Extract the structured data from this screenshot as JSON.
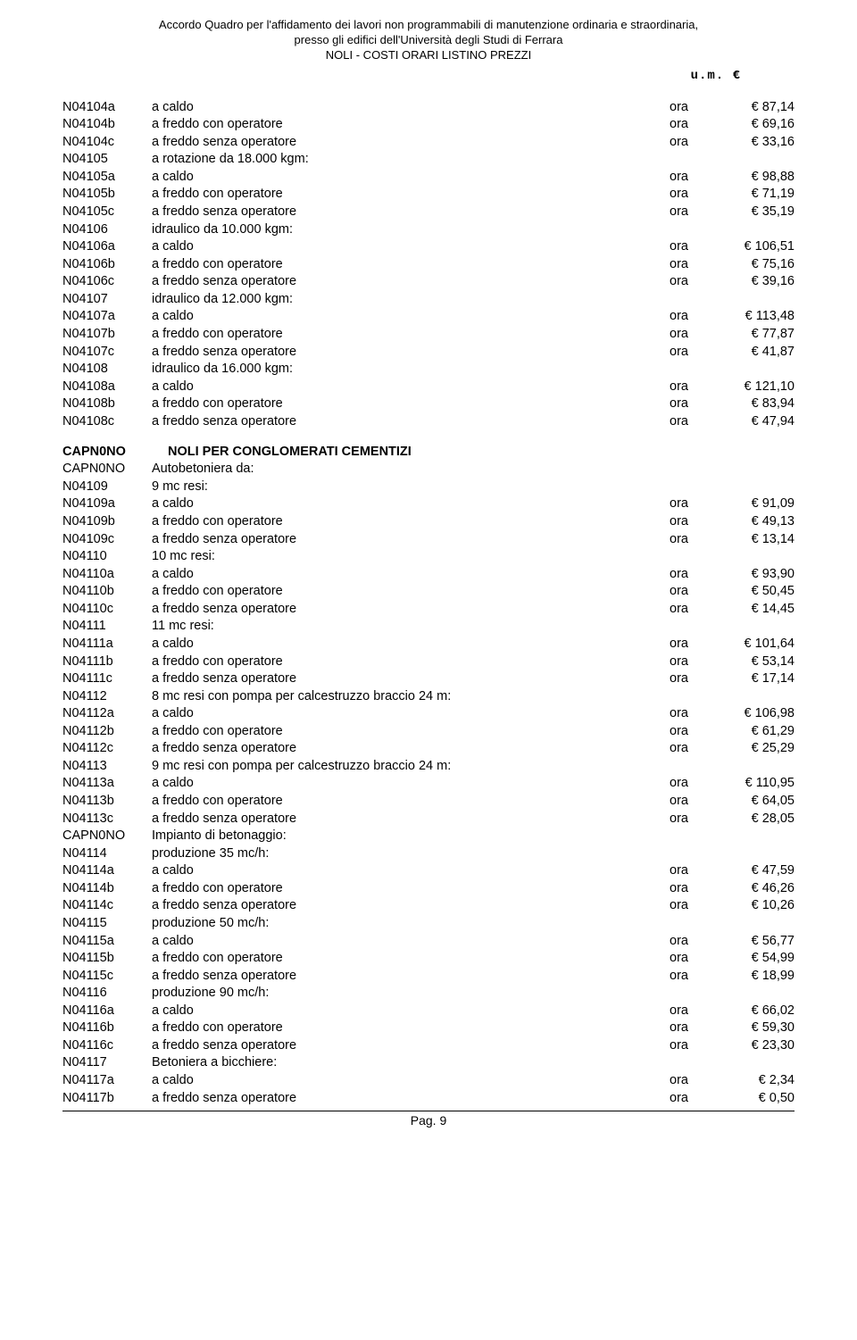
{
  "header": {
    "line1": "Accordo Quadro per l'affidamento dei lavori non programmabili di manutenzione ordinaria e straordinaria,",
    "line2": "presso gli edifici dell'Università degli Studi di Ferrara",
    "line3": "NOLI - COSTI ORARI LISTINO PREZZI"
  },
  "um_label": "u.m.   €",
  "section": {
    "code": "CAPN0NO",
    "title": "NOLI PER CONGLOMERATI CEMENTIZI"
  },
  "rows": [
    {
      "code": "N04104a",
      "desc": "a caldo",
      "unit": "ora",
      "price": "€ 87,14"
    },
    {
      "code": "N04104b",
      "desc": "a freddo con operatore",
      "unit": "ora",
      "price": "€ 69,16"
    },
    {
      "code": "N04104c",
      "desc": "a freddo senza operatore",
      "unit": "ora",
      "price": "€ 33,16"
    },
    {
      "code": "N04105",
      "desc": "a rotazione da 18.000 kgm:",
      "unit": "",
      "price": ""
    },
    {
      "code": "N04105a",
      "desc": "a caldo",
      "unit": "ora",
      "price": "€ 98,88"
    },
    {
      "code": "N04105b",
      "desc": "a freddo con operatore",
      "unit": "ora",
      "price": "€ 71,19"
    },
    {
      "code": "N04105c",
      "desc": "a freddo senza operatore",
      "unit": "ora",
      "price": "€ 35,19"
    },
    {
      "code": "N04106",
      "desc": "idraulico da 10.000 kgm:",
      "unit": "",
      "price": ""
    },
    {
      "code": "N04106a",
      "desc": "a caldo",
      "unit": "ora",
      "price": "€ 106,51"
    },
    {
      "code": "N04106b",
      "desc": "a freddo con operatore",
      "unit": "ora",
      "price": "€ 75,16"
    },
    {
      "code": "N04106c",
      "desc": "a freddo senza operatore",
      "unit": "ora",
      "price": "€ 39,16"
    },
    {
      "code": "N04107",
      "desc": "idraulico da 12.000 kgm:",
      "unit": "",
      "price": ""
    },
    {
      "code": "N04107a",
      "desc": "a caldo",
      "unit": "ora",
      "price": "€ 113,48"
    },
    {
      "code": "N04107b",
      "desc": "a freddo con operatore",
      "unit": "ora",
      "price": "€ 77,87"
    },
    {
      "code": "N04107c",
      "desc": "a freddo senza operatore",
      "unit": "ora",
      "price": "€ 41,87"
    },
    {
      "code": "N04108",
      "desc": "idraulico da 16.000 kgm:",
      "unit": "",
      "price": ""
    },
    {
      "code": "N04108a",
      "desc": "a caldo",
      "unit": "ora",
      "price": "€ 121,10"
    },
    {
      "code": "N04108b",
      "desc": "a freddo con operatore",
      "unit": "ora",
      "price": "€ 83,94"
    },
    {
      "code": "N04108c",
      "desc": "a freddo senza operatore",
      "unit": "ora",
      "price": "€ 47,94"
    }
  ],
  "rows2": [
    {
      "code": "CAPN0NO",
      "desc": "Autobetoniera da:",
      "unit": "",
      "price": ""
    },
    {
      "code": "N04109",
      "desc": "9 mc resi:",
      "unit": "",
      "price": ""
    },
    {
      "code": "N04109a",
      "desc": "a caldo",
      "unit": "ora",
      "price": "€ 91,09"
    },
    {
      "code": "N04109b",
      "desc": "a freddo con operatore",
      "unit": "ora",
      "price": "€ 49,13"
    },
    {
      "code": "N04109c",
      "desc": "a freddo senza operatore",
      "unit": "ora",
      "price": "€ 13,14"
    },
    {
      "code": "N04110",
      "desc": "10 mc resi:",
      "unit": "",
      "price": ""
    },
    {
      "code": "N04110a",
      "desc": "a caldo",
      "unit": "ora",
      "price": "€ 93,90"
    },
    {
      "code": "N04110b",
      "desc": "a freddo con operatore",
      "unit": "ora",
      "price": "€ 50,45"
    },
    {
      "code": "N04110c",
      "desc": "a freddo senza operatore",
      "unit": "ora",
      "price": "€ 14,45"
    },
    {
      "code": "N04111",
      "desc": "11 mc resi:",
      "unit": "",
      "price": ""
    },
    {
      "code": "N04111a",
      "desc": "a caldo",
      "unit": "ora",
      "price": "€ 101,64"
    },
    {
      "code": "N04111b",
      "desc": "a freddo con operatore",
      "unit": "ora",
      "price": "€ 53,14"
    },
    {
      "code": "N04111c",
      "desc": "a freddo senza operatore",
      "unit": "ora",
      "price": "€ 17,14"
    },
    {
      "code": "N04112",
      "desc": "8 mc resi con pompa per calcestruzzo braccio 24 m:",
      "unit": "",
      "price": ""
    },
    {
      "code": "N04112a",
      "desc": "a caldo",
      "unit": "ora",
      "price": "€ 106,98"
    },
    {
      "code": "N04112b",
      "desc": "a freddo con operatore",
      "unit": "ora",
      "price": "€ 61,29"
    },
    {
      "code": "N04112c",
      "desc": "a freddo senza operatore",
      "unit": "ora",
      "price": "€ 25,29"
    },
    {
      "code": "N04113",
      "desc": "9 mc resi con pompa per calcestruzzo braccio 24 m:",
      "unit": "",
      "price": ""
    },
    {
      "code": "N04113a",
      "desc": "a caldo",
      "unit": "ora",
      "price": "€ 110,95"
    },
    {
      "code": "N04113b",
      "desc": "a freddo con operatore",
      "unit": "ora",
      "price": "€ 64,05"
    },
    {
      "code": "N04113c",
      "desc": "a freddo senza operatore",
      "unit": "ora",
      "price": "€ 28,05"
    },
    {
      "code": "CAPN0NO",
      "desc": "Impianto di betonaggio:",
      "unit": "",
      "price": ""
    },
    {
      "code": "N04114",
      "desc": "produzione 35 mc/h:",
      "unit": "",
      "price": ""
    },
    {
      "code": "N04114a",
      "desc": "a caldo",
      "unit": "ora",
      "price": "€ 47,59"
    },
    {
      "code": "N04114b",
      "desc": "a freddo con operatore",
      "unit": "ora",
      "price": "€ 46,26"
    },
    {
      "code": "N04114c",
      "desc": "a freddo senza operatore",
      "unit": "ora",
      "price": "€ 10,26"
    },
    {
      "code": "N04115",
      "desc": "produzione 50 mc/h:",
      "unit": "",
      "price": ""
    },
    {
      "code": "N04115a",
      "desc": "a caldo",
      "unit": "ora",
      "price": "€ 56,77"
    },
    {
      "code": "N04115b",
      "desc": "a freddo con operatore",
      "unit": "ora",
      "price": "€ 54,99"
    },
    {
      "code": "N04115c",
      "desc": "a freddo senza operatore",
      "unit": "ora",
      "price": "€ 18,99"
    },
    {
      "code": "N04116",
      "desc": "produzione 90 mc/h:",
      "unit": "",
      "price": ""
    },
    {
      "code": "N04116a",
      "desc": "a caldo",
      "unit": "ora",
      "price": "€ 66,02"
    },
    {
      "code": "N04116b",
      "desc": "a freddo con operatore",
      "unit": "ora",
      "price": "€ 59,30"
    },
    {
      "code": "N04116c",
      "desc": "a freddo senza operatore",
      "unit": "ora",
      "price": "€ 23,30"
    },
    {
      "code": "N04117",
      "desc": "Betoniera a bicchiere:",
      "unit": "",
      "price": ""
    },
    {
      "code": "N04117a",
      "desc": "a caldo",
      "unit": "ora",
      "price": "€ 2,34"
    },
    {
      "code": "N04117b",
      "desc": "a freddo senza operatore",
      "unit": "ora",
      "price": "€ 0,50"
    }
  ],
  "footer": "Pag. 9"
}
